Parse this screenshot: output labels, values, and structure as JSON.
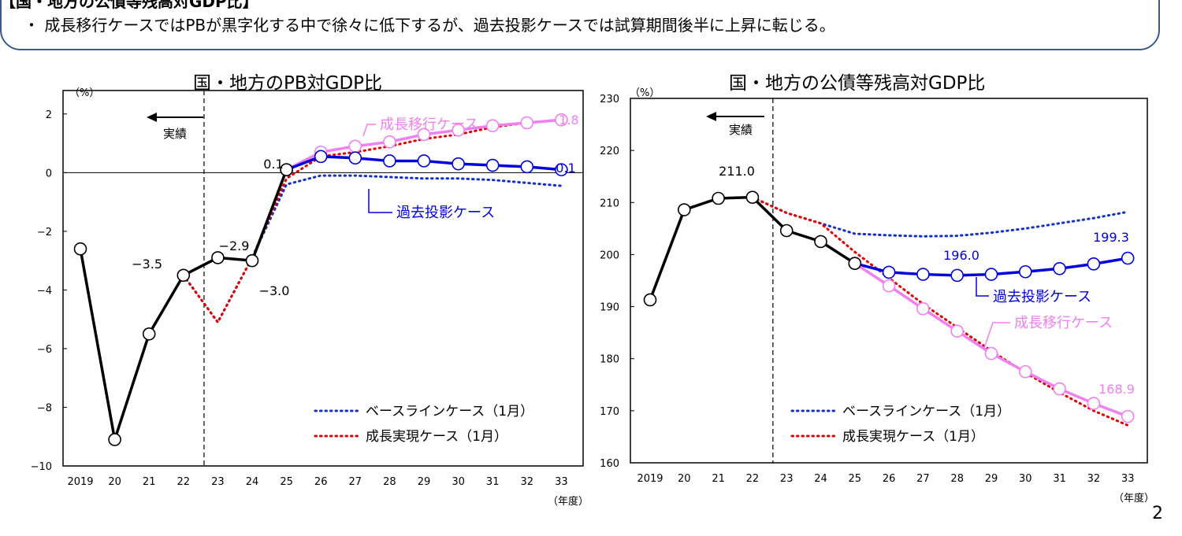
{
  "header": {
    "title": "【国・地方の公債等残高対GDP比】",
    "bullet": "・ 成長移行ケースではPBが黒字化する中で徐々に低下するが、過去投影ケースでは試算期間後半に上昇に転じる。"
  },
  "page_number": "2",
  "chart_data": [
    {
      "type": "line",
      "title": "国・地方のPB対GDP比",
      "unit_label": "（%）",
      "xlabel": "（年度）",
      "categories": [
        "2019",
        "20",
        "21",
        "22",
        "23",
        "24",
        "25",
        "26",
        "27",
        "28",
        "29",
        "30",
        "31",
        "32",
        "33"
      ],
      "ylim": [
        -10,
        2.8
      ],
      "yticks": [
        2,
        0,
        -2,
        -4,
        -6,
        -8,
        -10
      ],
      "ytick_labels": [
        "2",
        "0",
        "−2",
        "−4",
        "−6",
        "−8",
        "−10"
      ],
      "actual_boundary": 22.6,
      "actual_label": "実績",
      "series": [
        {
          "name": "実績",
          "color": "#000000",
          "style": "solid",
          "values": [
            -2.6,
            -9.1,
            -5.5,
            -3.5,
            -2.9,
            -3.0,
            0.1,
            null,
            null,
            null,
            null,
            null,
            null,
            null,
            null
          ]
        },
        {
          "name": "成長移行ケース",
          "color": "#f07ff0",
          "style": "solid",
          "values": [
            null,
            null,
            null,
            null,
            null,
            null,
            0.1,
            0.7,
            0.9,
            1.05,
            1.3,
            1.45,
            1.6,
            1.7,
            1.8
          ]
        },
        {
          "name": "過去投影ケース",
          "color": "#0000dd",
          "style": "solid",
          "values": [
            null,
            null,
            null,
            null,
            null,
            null,
            0.1,
            0.55,
            0.5,
            0.4,
            0.4,
            0.3,
            0.25,
            0.2,
            0.1
          ]
        },
        {
          "name": "ベースラインケース（1月）",
          "color": "#1530c8",
          "style": "dotted",
          "values": [
            null,
            null,
            null,
            -3.5,
            -5.1,
            -2.9,
            -0.4,
            -0.1,
            -0.1,
            -0.15,
            -0.2,
            -0.2,
            -0.25,
            -0.35,
            -0.45
          ]
        },
        {
          "name": "成長実現ケース（1月）",
          "color": "#dd0000",
          "style": "dotted",
          "values": [
            null,
            null,
            null,
            -3.5,
            -5.1,
            -2.9,
            -0.2,
            0.55,
            0.7,
            0.9,
            1.15,
            1.3,
            1.55,
            1.7,
            1.8
          ]
        }
      ],
      "data_labels": [
        {
          "text": "−3.5",
          "color": "#000000"
        },
        {
          "text": "−2.9",
          "color": "#000000"
        },
        {
          "text": "−3.0",
          "color": "#000000"
        },
        {
          "text": "0.1",
          "color": "#000000"
        },
        {
          "text": "1.8",
          "color": "#f07ff0"
        },
        {
          "text": "0.1",
          "color": "#0000dd"
        }
      ],
      "callouts": [
        {
          "text": "成長移行ケース",
          "color": "#f07ff0"
        },
        {
          "text": "過去投影ケース",
          "color": "#0000dd"
        }
      ],
      "legend": [
        {
          "label": "ベースラインケース（1月）",
          "color": "#1530c8"
        },
        {
          "label": "成長実現ケース（1月）",
          "color": "#dd0000"
        }
      ]
    },
    {
      "type": "line",
      "title": "国・地方の公債等残高対GDP比",
      "unit_label": "（%）",
      "xlabel": "（年度）",
      "categories": [
        "2019",
        "20",
        "21",
        "22",
        "23",
        "24",
        "25",
        "26",
        "27",
        "28",
        "29",
        "30",
        "31",
        "32",
        "33"
      ],
      "ylim": [
        160,
        230
      ],
      "yticks": [
        230,
        220,
        210,
        200,
        190,
        180,
        170,
        160
      ],
      "ytick_labels": [
        "230",
        "220",
        "210",
        "200",
        "190",
        "180",
        "170",
        "160"
      ],
      "actual_boundary": 22.6,
      "actual_label": "実績",
      "series": [
        {
          "name": "実績",
          "color": "#000000",
          "style": "solid",
          "values": [
            191.3,
            208.6,
            210.8,
            211.0,
            204.6,
            202.5,
            198.3,
            null,
            null,
            null,
            null,
            null,
            null,
            null,
            null
          ]
        },
        {
          "name": "過去投影ケース",
          "color": "#0000dd",
          "style": "solid",
          "values": [
            null,
            null,
            null,
            null,
            null,
            null,
            198.3,
            196.6,
            196.2,
            196.0,
            196.2,
            196.7,
            197.3,
            198.2,
            199.3
          ]
        },
        {
          "name": "成長移行ケース",
          "color": "#f07ff0",
          "style": "solid",
          "values": [
            null,
            null,
            null,
            null,
            null,
            null,
            198.3,
            194.0,
            189.6,
            185.3,
            181.0,
            177.5,
            174.2,
            171.4,
            168.9
          ]
        },
        {
          "name": "ベースラインケース（1月）",
          "color": "#1530c8",
          "style": "dotted",
          "values": [
            null,
            null,
            null,
            211.0,
            208.0,
            206.0,
            204.0,
            203.7,
            203.5,
            203.6,
            204.2,
            205.0,
            206.0,
            207.0,
            208.2
          ]
        },
        {
          "name": "成長実現ケース（1月）",
          "color": "#dd0000",
          "style": "dotted",
          "values": [
            null,
            null,
            null,
            211.0,
            208.0,
            206.0,
            200.5,
            195.5,
            190.5,
            186.0,
            181.5,
            177.3,
            173.5,
            170.0,
            167.2
          ]
        }
      ],
      "data_labels": [
        {
          "text": "211.0",
          "color": "#000000"
        },
        {
          "text": "196.0",
          "color": "#0000dd"
        },
        {
          "text": "199.3",
          "color": "#0000dd"
        },
        {
          "text": "168.9",
          "color": "#f07ff0"
        }
      ],
      "callouts": [
        {
          "text": "過去投影ケース",
          "color": "#0000dd"
        },
        {
          "text": "成長移行ケース",
          "color": "#f07ff0"
        }
      ],
      "legend": [
        {
          "label": "ベースラインケース（1月）",
          "color": "#1530c8"
        },
        {
          "label": "成長実現ケース（1月）",
          "color": "#dd0000"
        }
      ]
    }
  ]
}
